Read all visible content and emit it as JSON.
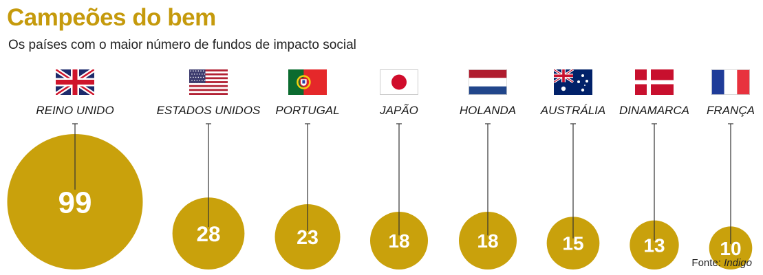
{
  "header": {
    "title": "Campeões do bem",
    "subtitle": "Os países com o maior número de fundos de impacto social"
  },
  "source": {
    "prefix": "Fonte:",
    "name": "Indigo"
  },
  "colors": {
    "accent": "#c59a0c",
    "bubble": "#c9a10c",
    "value_text": "#ffffff"
  },
  "chart_data": {
    "type": "bubble",
    "title": "Campeões do bem",
    "subtitle": "Os países com o maior número de fundos de impacto social",
    "categories": [
      "REINO UNIDO",
      "ESTADOS UNIDOS",
      "PORTUGAL",
      "JAPÃO",
      "HOLANDA",
      "AUSTRÁLIA",
      "DINAMARCA",
      "FRANÇA"
    ],
    "values": [
      99,
      28,
      23,
      18,
      18,
      15,
      13,
      10
    ],
    "flags": [
      "flag-uk-icon",
      "flag-usa-icon",
      "flag-portugal-icon",
      "flag-japan-icon",
      "flag-netherlands-icon",
      "flag-australia-icon",
      "flag-denmark-icon",
      "flag-france-icon"
    ]
  }
}
